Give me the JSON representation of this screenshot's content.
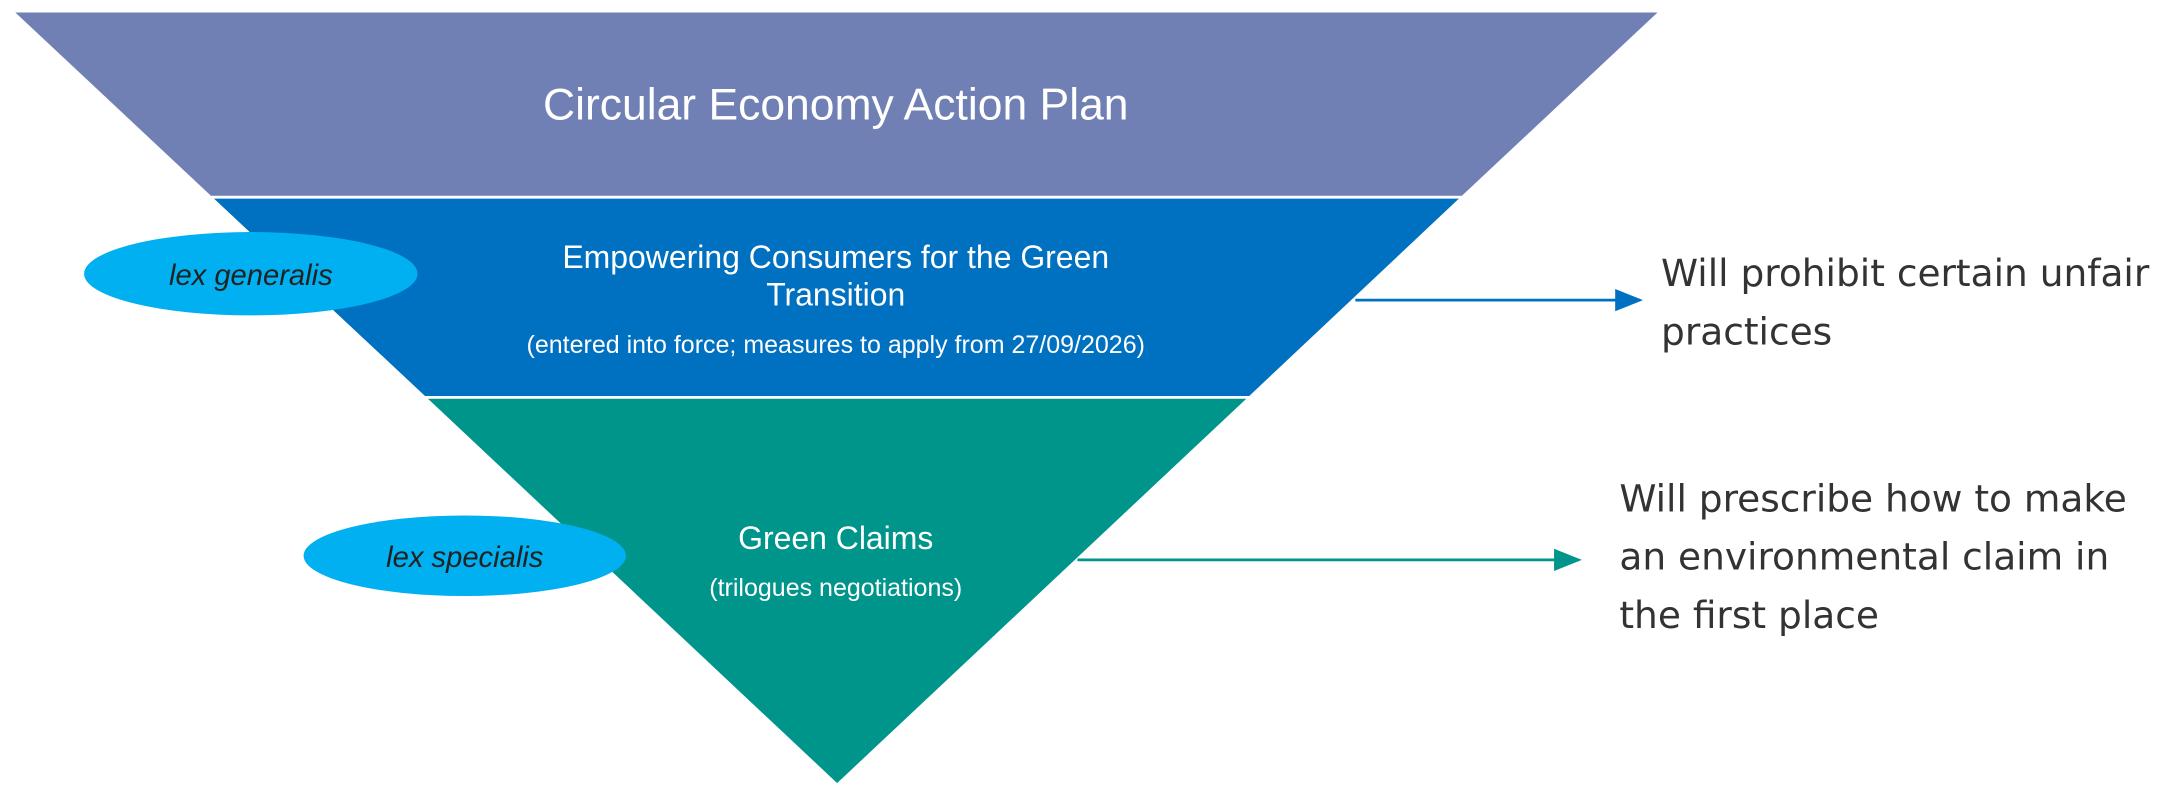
{
  "title": "Circular Economy Action Plan",
  "layers": [
    {
      "title_lines": [
        "Empowering Consumers for the Green",
        "Transition"
      ],
      "note": "(entered into force; measures to apply from 27/09/2026)",
      "tag": "lex generalis",
      "effect_lines": [
        "Will prohibit certain unfair",
        "practices"
      ]
    },
    {
      "title_lines": [
        "Green Claims"
      ],
      "note": "(trilogues negotiations)",
      "tag": "lex specialis",
      "effect_lines": [
        "Will prescribe how to make",
        "an environmental claim in",
        "the first place"
      ]
    }
  ]
}
